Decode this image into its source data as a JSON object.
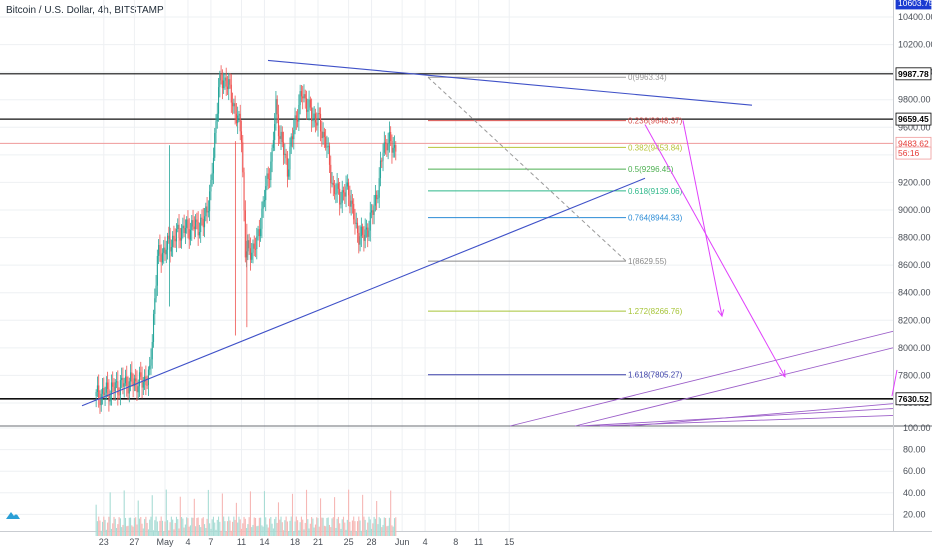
{
  "chart_title": "Bitcoin / U.S. Dollar, 4h, BITSTAMP",
  "price_axis_ticks": [
    "10400.00",
    "10200.00",
    "10000.00",
    "9800.00",
    "9600.00",
    "9400.00",
    "9200.00",
    "9000.00",
    "8800.00",
    "8600.00",
    "8400.00",
    "8200.00",
    "8000.00",
    "7800.00",
    "7600.00"
  ],
  "volume_axis_ticks": [
    "100.00",
    "80.00",
    "60.00",
    "40.00",
    "20.00"
  ],
  "time_axis_ticks": [
    "23",
    "27",
    "May",
    "4",
    "7",
    "11",
    "14",
    "18",
    "21",
    "25",
    "28",
    "Jun",
    "4",
    "8",
    "11",
    "15"
  ],
  "price_tags": [
    {
      "text": "10603.75",
      "price": 10603.75,
      "style": "blue"
    },
    {
      "text": "9987.78",
      "price": 9987.78,
      "style": "black"
    },
    {
      "text": "9659.45",
      "price": 9659.45,
      "style": "black"
    },
    {
      "text": "9483.62",
      "price": 9483.62,
      "style": "red"
    },
    {
      "text": "56:16",
      "price": 9413,
      "style": "red"
    },
    {
      "text": "7630.52",
      "price": 7630.52,
      "style": "black"
    }
  ],
  "fib_levels": [
    {
      "label": "0(9963.34)",
      "price": 9963.34,
      "color": "#9a9a9a"
    },
    {
      "label": "0.236(9648.37)",
      "price": 9648.37,
      "color": "#d9534f"
    },
    {
      "label": "0.382(9453.84)",
      "price": 9453.84,
      "color": "#b7c43a"
    },
    {
      "label": "0.5(9296.45)",
      "price": 9296.45,
      "color": "#4caf50"
    },
    {
      "label": "0.618(9139.06)",
      "price": 9139.06,
      "color": "#2eb88a"
    },
    {
      "label": "0.764(8944.33)",
      "price": 8944.33,
      "color": "#2b8cd6"
    },
    {
      "label": "1(8629.55)",
      "price": 8629.55,
      "color": "#8a8a8a"
    },
    {
      "label": "1.272(8266.76)",
      "price": 8266.76,
      "color": "#a6c437"
    },
    {
      "label": "1.618(7805.27)",
      "price": 7805.27,
      "color": "#3a3fa8"
    }
  ],
  "colors": {
    "up": "#26a69a",
    "down": "#ef5350",
    "trend": "#3f51c8",
    "arrow": "#e040fb",
    "channel": "#9c5fc9"
  },
  "icons": {
    "logo": "tradingview-logo-icon"
  },
  "chart_data": {
    "type": "candlestick",
    "title": "Bitcoin / U.S. Dollar, 4h, BITSTAMP",
    "ylim": [
      7580,
      10620
    ],
    "xticks": [
      "23",
      "27",
      "May",
      "4",
      "7",
      "11",
      "14",
      "18",
      "21",
      "25",
      "28",
      "Jun",
      "4",
      "8",
      "11",
      "15"
    ],
    "key_points": [
      {
        "date": "Apr 22",
        "close": 7650
      },
      {
        "date": "Apr 26",
        "close": 7750
      },
      {
        "date": "Apr 28",
        "close": 7750
      },
      {
        "date": "Apr 29",
        "close": 7800
      },
      {
        "date": "Apr 30",
        "close": 8650
      },
      {
        "date": "May 2",
        "close": 8850
      },
      {
        "date": "May 5",
        "close": 8900
      },
      {
        "date": "May 6",
        "close": 9150
      },
      {
        "date": "May 7",
        "close": 9900
      },
      {
        "date": "May 8",
        "close": 9950
      },
      {
        "date": "May 9",
        "close": 9750
      },
      {
        "date": "May 10",
        "close": 9550
      },
      {
        "date": "May 10",
        "close": 8700
      },
      {
        "date": "May 11",
        "close": 8700
      },
      {
        "date": "May 12",
        "close": 8750
      },
      {
        "date": "May 13",
        "close": 9100
      },
      {
        "date": "May 14",
        "close": 9400
      },
      {
        "date": "May 14",
        "close": 9750
      },
      {
        "date": "May 15",
        "close": 9550
      },
      {
        "date": "May 16",
        "close": 9300
      },
      {
        "date": "May 17",
        "close": 9650
      },
      {
        "date": "May 18",
        "close": 9850
      },
      {
        "date": "May 19",
        "close": 9700
      },
      {
        "date": "May 20",
        "close": 9650
      },
      {
        "date": "May 21",
        "close": 9500
      },
      {
        "date": "May 22",
        "close": 9150
      },
      {
        "date": "May 23",
        "close": 9100
      },
      {
        "date": "May 24",
        "close": 9150
      },
      {
        "date": "May 25",
        "close": 8850
      },
      {
        "date": "May 26",
        "close": 8800
      },
      {
        "date": "May 27",
        "close": 8950
      },
      {
        "date": "May 28",
        "close": 9200
      },
      {
        "date": "May 28",
        "close": 9450
      },
      {
        "date": "May 29",
        "close": 9500
      },
      {
        "date": "May 30",
        "close": 9450
      },
      {
        "date": "May 31",
        "close": 9550
      },
      {
        "date": "May 31",
        "close": 9530
      }
    ]
  }
}
